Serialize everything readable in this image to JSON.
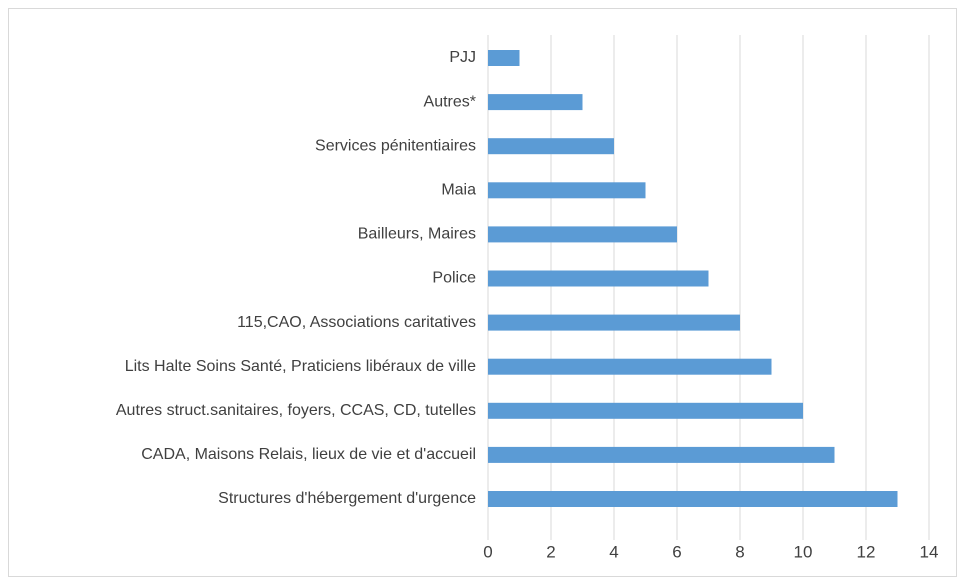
{
  "chart_data": {
    "type": "bar",
    "orientation": "horizontal",
    "categories": [
      "PJJ",
      "Autres*",
      "Services pénitentiaires",
      "Maia",
      "Bailleurs, Maires",
      "Police",
      "115,CAO, Associations caritatives",
      "Lits Halte Soins Santé, Praticiens libéraux de ville",
      "Autres struct.sanitaires, foyers, CCAS, CD, tutelles",
      "CADA, Maisons Relais, lieux de vie et d'accueil",
      "Structures d'hébergement d'urgence"
    ],
    "values": [
      1,
      3,
      4,
      5,
      6,
      7,
      8,
      9,
      10,
      11,
      13
    ],
    "color": "#5b9bd5",
    "xlim": [
      0,
      14
    ],
    "xticks": [
      0,
      2,
      4,
      6,
      8,
      10,
      12,
      14
    ],
    "grid": true
  }
}
